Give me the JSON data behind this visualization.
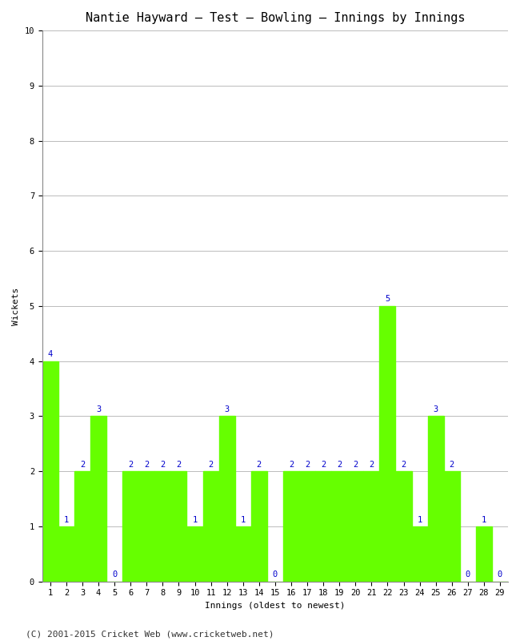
{
  "title": "Nantie Hayward – Test – Bowling – Innings by Innings",
  "xlabel": "Innings (oldest to newest)",
  "ylabel": "Wickets",
  "bar_color": "#66ff00",
  "label_color": "#0000cc",
  "background_color": "#ffffff",
  "grid_color": "#bbbbbb",
  "ylim": [
    0,
    10
  ],
  "yticks": [
    0,
    1,
    2,
    3,
    4,
    5,
    6,
    7,
    8,
    9,
    10
  ],
  "innings": [
    1,
    2,
    3,
    4,
    5,
    6,
    7,
    8,
    9,
    10,
    11,
    12,
    13,
    14,
    15,
    16,
    17,
    18,
    19,
    20,
    21,
    22,
    23,
    24,
    25,
    26,
    27,
    28,
    29
  ],
  "wickets": [
    4,
    1,
    2,
    3,
    0,
    2,
    2,
    2,
    2,
    1,
    2,
    3,
    1,
    2,
    0,
    2,
    2,
    2,
    2,
    2,
    2,
    5,
    2,
    1,
    3,
    2,
    0,
    1,
    0
  ],
  "footer": "(C) 2001-2015 Cricket Web (www.cricketweb.net)",
  "title_fontsize": 11,
  "label_fontsize": 8,
  "tick_fontsize": 7.5,
  "footer_fontsize": 8,
  "bar_label_fontsize": 7.5
}
